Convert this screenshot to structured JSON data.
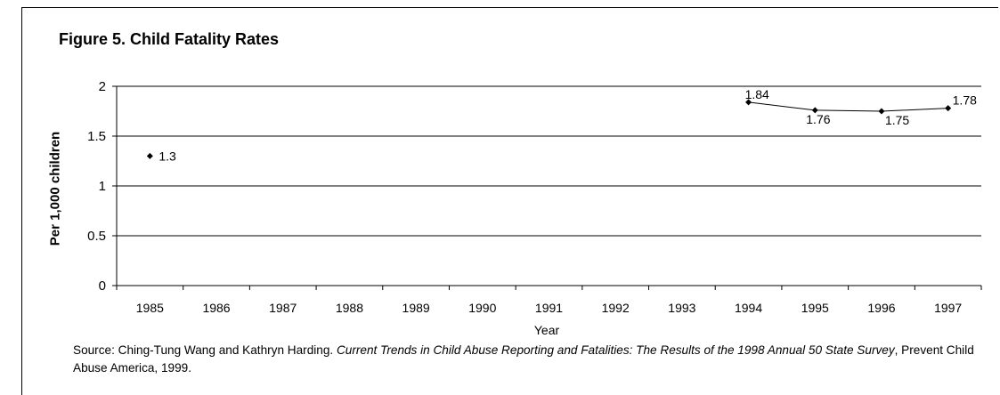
{
  "chart_data": {
    "type": "line",
    "title": "Figure 5.  Child Fatality Rates",
    "xlabel": "Year",
    "ylabel": "Per 1,000 children",
    "ylim": [
      0,
      2
    ],
    "yticks": [
      "0",
      "0.5",
      "1",
      "1.5",
      "2"
    ],
    "categories": [
      "1985",
      "1986",
      "1987",
      "1988",
      "1989",
      "1990",
      "1991",
      "1992",
      "1993",
      "1994",
      "1995",
      "1996",
      "1997"
    ],
    "series": [
      {
        "values": [
          1.3,
          null,
          null,
          null,
          null,
          null,
          null,
          null,
          null,
          1.84,
          1.76,
          1.75,
          1.78
        ],
        "labels": [
          "1.3",
          "",
          "",
          "",
          "",
          "",
          "",
          "",
          "",
          "1.84",
          "1.76",
          "1.75",
          "1.78"
        ],
        "color": "#000000"
      }
    ],
    "grid": true,
    "legend": "none"
  },
  "source": {
    "prefix": "Source:  Ching-Tung Wang and Kathryn Harding.  ",
    "title_italic": "Current Trends in Child Abuse Reporting and Fatalities: The Results of the 1998 Annual 50 State Survey",
    "suffix": ", Prevent Child Abuse America, 1999."
  }
}
